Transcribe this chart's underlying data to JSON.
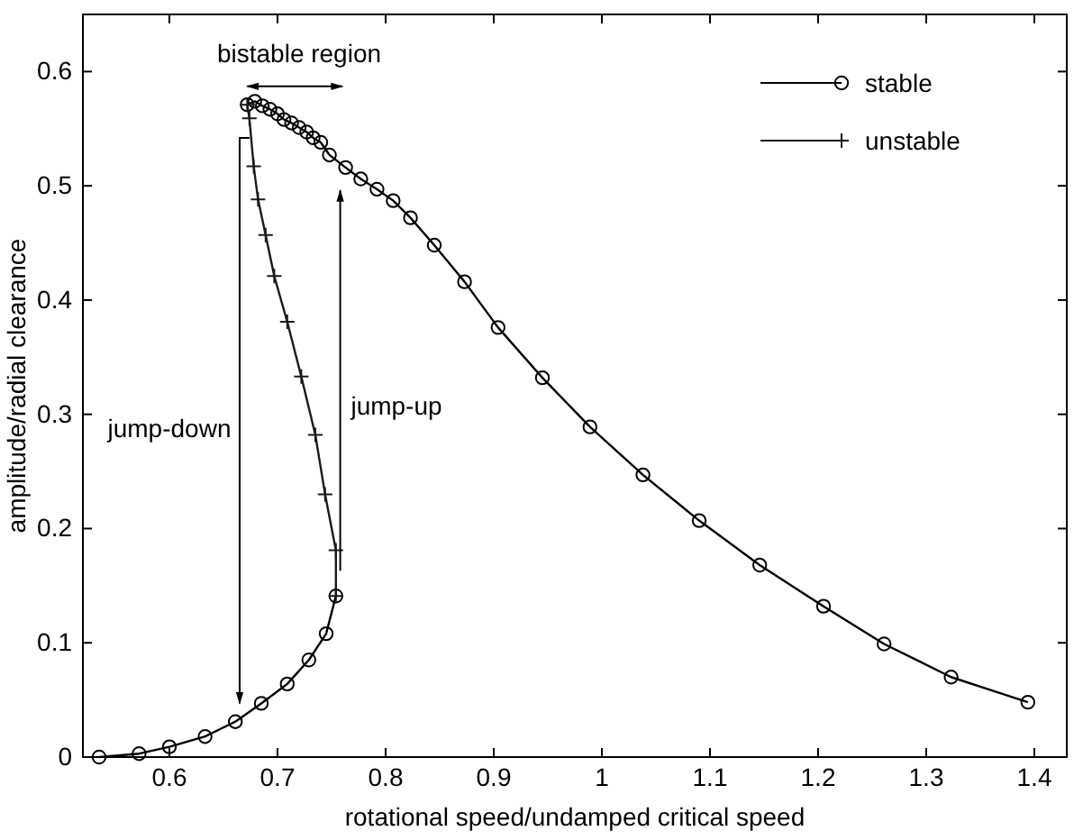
{
  "chart_data": {
    "type": "line",
    "xlabel": "rotational speed/undamped critical speed",
    "ylabel": "amplitude/radial clearance",
    "xlim": [
      0.52,
      1.43
    ],
    "xticks": [
      0.6,
      0.7,
      0.8,
      0.9,
      1,
      1.1,
      1.2,
      1.3,
      1.4
    ],
    "ylim": [
      0,
      0.65
    ],
    "yticks": [
      0,
      0.1,
      0.2,
      0.3,
      0.4,
      0.5,
      0.6
    ],
    "grid": false,
    "legend": "top right",
    "line_style": "solid",
    "annotations": [
      "bistable region",
      "jump-down",
      "jump-up"
    ],
    "series": [
      {
        "name": "stable",
        "color": "#000000",
        "marker": "circle",
        "x": [
          0.535,
          0.572,
          0.6,
          0.633,
          0.661,
          0.685,
          0.709,
          0.729,
          0.745,
          0.754,
          0.71,
          0.672,
          0.679,
          0.686,
          0.693,
          0.7,
          0.706,
          0.713,
          0.72,
          0.727,
          0.733,
          0.74,
          0.748,
          0.763,
          0.777,
          0.792,
          0.807,
          0.823,
          0.845,
          0.873,
          0.904,
          0.945,
          0.989,
          1.038,
          1.09,
          1.146,
          1.205,
          1.261,
          1.323,
          1.394
        ],
        "values": [
          0,
          0.003,
          0.009,
          0.018,
          0.031,
          0.047,
          0.064,
          0.085,
          0.108,
          0.141,
          null,
          0.571,
          0.574,
          0.57,
          0.567,
          0.563,
          0.558,
          0.555,
          0.551,
          0.547,
          0.542,
          0.538,
          0.527,
          0.516,
          0.506,
          0.497,
          0.487,
          0.472,
          0.448,
          0.416,
          0.376,
          0.332,
          0.289,
          0.247,
          0.207,
          0.168,
          0.132,
          0.099,
          0.07,
          0.048
        ]
      },
      {
        "name": "unstable",
        "color": "#1a1a1a",
        "marker": "cross",
        "x": [
          0.754,
          0.754,
          0.744,
          0.735,
          0.722,
          0.709,
          0.697,
          0.689,
          0.682,
          0.678,
          0.674,
          0.672
        ],
        "values": [
          0.141,
          0.181,
          0.23,
          0.282,
          0.333,
          0.381,
          0.421,
          0.457,
          0.488,
          0.517,
          0.559,
          0.571
        ]
      }
    ]
  }
}
